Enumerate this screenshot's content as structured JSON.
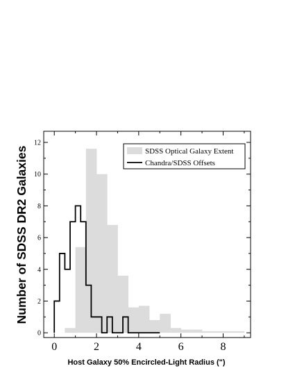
{
  "chart_data": {
    "type": "bar",
    "title": "",
    "xlabel": "Host Galaxy 50% Encircled-Light Radius (\")",
    "ylabel": "Number of  SDSS DR2 Galaxies",
    "xlim": [
      -0.5,
      9.3
    ],
    "ylim": [
      -0.3,
      12.7
    ],
    "xticks": [
      0,
      2,
      4,
      6,
      8
    ],
    "yticks": [
      0,
      2,
      4,
      6,
      8,
      10,
      12
    ],
    "legend": {
      "position": "top-right"
    },
    "series": [
      {
        "name": "SDSS Optical Galaxy Extent",
        "style": "filled",
        "color": "#dcdcdc",
        "bin_edges": [
          0.5,
          1.0,
          1.5,
          2.0,
          2.5,
          3.0,
          3.5,
          4.0,
          4.5,
          5.0,
          5.5,
          6.0,
          6.5,
          7.0,
          7.5,
          8.0,
          8.5,
          9.0
        ],
        "values": [
          0.3,
          5.4,
          11.6,
          10.0,
          6.8,
          3.6,
          1.6,
          1.7,
          0.8,
          1.2,
          0.3,
          0.2,
          0.2,
          0.1,
          0.1,
          0.1,
          0.1
        ]
      },
      {
        "name": "Chandra/SDSS Offsets",
        "style": "step",
        "color": "#000000",
        "bin_edges": [
          0.0,
          0.25,
          0.5,
          0.75,
          1.0,
          1.25,
          1.5,
          1.75,
          2.0,
          2.25,
          2.5,
          2.75,
          3.0,
          3.25,
          3.5,
          3.75,
          4.0,
          4.25,
          4.5,
          4.75,
          5.0
        ],
        "values": [
          2,
          5,
          4,
          7,
          8,
          7,
          3,
          1,
          1,
          0,
          1,
          0,
          0,
          1,
          0,
          0,
          0,
          0,
          0,
          0
        ]
      }
    ]
  }
}
